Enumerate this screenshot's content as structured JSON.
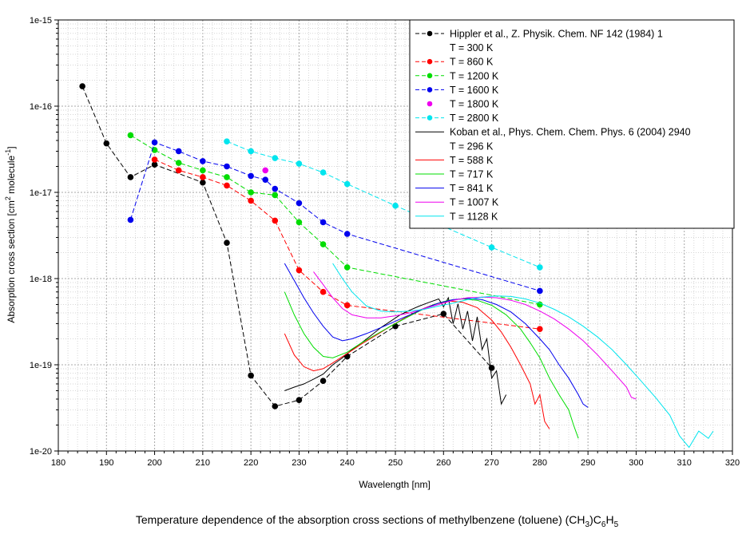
{
  "chart_data": {
    "type": "line",
    "title": "",
    "caption": "Temperature dependence of the absorption cross sections of methylbenzene (toluene) (CH",
    "caption_sub1": "3",
    "caption_mid": ")C",
    "caption_sub2": "6",
    "caption_mid2": "H",
    "caption_sub3": "5",
    "xlabel": "Wavelength [nm]",
    "ylabel": "Absorption cross section [cm",
    "ylabel_sup1": "2",
    "ylabel_mid": " molecule",
    "ylabel_sup2": "-1",
    "ylabel_end": "]",
    "xlim": [
      180,
      320
    ],
    "ylim_log10": [
      -20,
      -15
    ],
    "xticks": [
      180,
      190,
      200,
      210,
      220,
      230,
      240,
      250,
      260,
      270,
      280,
      290,
      300,
      310,
      320
    ],
    "yticks": [
      {
        "exp": -20,
        "label": "1e-20"
      },
      {
        "exp": -19,
        "label": "1e-19"
      },
      {
        "exp": -18,
        "label": "1e-18"
      },
      {
        "exp": -17,
        "label": "1e-17"
      },
      {
        "exp": -16,
        "label": "1e-16"
      },
      {
        "exp": -15,
        "label": "1e-15"
      }
    ],
    "grid": true,
    "legend_position": "top-right",
    "legend": [
      {
        "label": "Hippler et al., Z. Physik. Chem. NF 142 (1984) 1",
        "color": "#000000",
        "style": "dashed-marker"
      },
      {
        "label": "T = 300 K",
        "color": "#000000",
        "style": "none"
      },
      {
        "label": "T = 860 K",
        "color": "#ff0000",
        "style": "dashed-marker"
      },
      {
        "label": "T = 1200 K",
        "color": "#00dd00",
        "style": "dashed-marker"
      },
      {
        "label": "T = 1600 K",
        "color": "#0000ee",
        "style": "dashed-marker"
      },
      {
        "label": "T = 1800 K",
        "color": "#ee00ee",
        "style": "marker"
      },
      {
        "label": "T = 2800 K",
        "color": "#00e5ee",
        "style": "dashed-marker"
      },
      {
        "label": "Koban et al., Phys. Chem. Chem. Phys. 6 (2004) 2940",
        "color": "#000000",
        "style": "line"
      },
      {
        "label": "T =  296 K",
        "color": "#000000",
        "style": "none"
      },
      {
        "label": "T =  588 K",
        "color": "#ff0000",
        "style": "line"
      },
      {
        "label": "T =  717 K",
        "color": "#00dd00",
        "style": "line"
      },
      {
        "label": "T =  841 K",
        "color": "#0000ee",
        "style": "line"
      },
      {
        "label": "T = 1007 K",
        "color": "#ee00ee",
        "style": "line"
      },
      {
        "label": "T = 1128 K",
        "color": "#00e5ee",
        "style": "line"
      }
    ],
    "series": [
      {
        "name": "Hippler 300 K",
        "color": "#000000",
        "kind": "marker",
        "x": [
          185,
          190,
          195,
          200,
          210,
          215,
          220,
          225,
          230,
          235,
          240,
          250,
          260,
          270
        ],
        "y": [
          1.7e-16,
          3.7e-17,
          1.5e-17,
          2.1e-17,
          1.3e-17,
          2.6e-18,
          7.5e-20,
          3.3e-20,
          3.9e-20,
          6.5e-20,
          1.25e-19,
          2.8e-19,
          3.9e-19,
          9.2e-20
        ]
      },
      {
        "name": "Hippler 860 K",
        "color": "#ff0000",
        "kind": "marker",
        "x": [
          200,
          205,
          210,
          215,
          220,
          225,
          230,
          235,
          240,
          280
        ],
        "y": [
          2.4e-17,
          1.8e-17,
          1.5e-17,
          1.2e-17,
          8e-18,
          4.7e-18,
          1.25e-18,
          7e-19,
          4.9e-19,
          2.6e-19
        ]
      },
      {
        "name": "Hippler 1200 K",
        "color": "#00dd00",
        "kind": "marker",
        "x": [
          195,
          200,
          205,
          210,
          215,
          220,
          225,
          230,
          235,
          240,
          280
        ],
        "y": [
          4.6e-17,
          3.1e-17,
          2.2e-17,
          1.8e-17,
          1.5e-17,
          1e-17,
          9.3e-18,
          4.5e-18,
          2.5e-18,
          1.35e-18,
          5e-19
        ]
      },
      {
        "name": "Hippler 1600 K",
        "color": "#0000ee",
        "kind": "marker",
        "x": [
          195,
          200,
          205,
          210,
          215,
          220,
          223,
          225,
          230,
          235,
          240,
          280
        ],
        "y": [
          4.8e-18,
          3.8e-17,
          3e-17,
          2.3e-17,
          2e-17,
          1.55e-17,
          1.4e-17,
          1.1e-17,
          7.5e-18,
          4.5e-18,
          3.3e-18,
          7.2e-19
        ]
      },
      {
        "name": "Hippler 1800 K",
        "color": "#ee00ee",
        "kind": "marker-only",
        "x": [
          223
        ],
        "y": [
          1.8e-17
        ]
      },
      {
        "name": "Hippler 2800 K",
        "color": "#00e5ee",
        "kind": "marker",
        "x": [
          215,
          220,
          225,
          230,
          235,
          240,
          250,
          270,
          280
        ],
        "y": [
          3.9e-17,
          3e-17,
          2.5e-17,
          2.15e-17,
          1.7e-17,
          1.25e-17,
          7e-18,
          2.3e-18,
          1.35e-18
        ]
      },
      {
        "name": "Koban 296 K",
        "color": "#000000",
        "kind": "line",
        "x": [
          227,
          229,
          231,
          233,
          235,
          237,
          239,
          241,
          243,
          245,
          247,
          249,
          251,
          253,
          255,
          257,
          259,
          260,
          261,
          262,
          263,
          264,
          265,
          266,
          267,
          268,
          269,
          270,
          271,
          272,
          273
        ],
        "y": [
          5e-20,
          5.5e-20,
          6e-20,
          6.8e-20,
          7.8e-20,
          1e-19,
          1.2e-19,
          1.5e-19,
          1.8e-19,
          2.2e-19,
          2.7e-19,
          3.2e-19,
          3.8e-19,
          4.3e-19,
          4.8e-19,
          5.3e-19,
          5.8e-19,
          4.7e-19,
          6e-19,
          3e-19,
          5.1e-19,
          2.6e-19,
          4.2e-19,
          1.9e-19,
          3.6e-19,
          1.5e-19,
          2e-19,
          7e-20,
          8.5e-20,
          3.5e-20,
          4.5e-20
        ]
      },
      {
        "name": "Koban 588 K",
        "color": "#ff0000",
        "kind": "line",
        "x": [
          227,
          229,
          231,
          233,
          235,
          237,
          240,
          243,
          246,
          249,
          252,
          255,
          258,
          261,
          264,
          267,
          270,
          272,
          274,
          276,
          278,
          279,
          280,
          281,
          282
        ],
        "y": [
          2.3e-19,
          1.3e-19,
          9.5e-20,
          8.5e-20,
          9e-20,
          1.05e-19,
          1.35e-19,
          1.75e-19,
          2.2e-19,
          2.8e-19,
          3.5e-19,
          4.3e-19,
          5e-19,
          5.5e-19,
          5.3e-19,
          4.6e-19,
          3.3e-19,
          2.4e-19,
          1.6e-19,
          1e-19,
          6e-20,
          3.5e-20,
          4.5e-20,
          2.2e-20,
          1.8e-20
        ]
      },
      {
        "name": "Koban 717 K",
        "color": "#00dd00",
        "kind": "line",
        "x": [
          227,
          229,
          231,
          233,
          235,
          237,
          240,
          243,
          246,
          249,
          252,
          255,
          258,
          261,
          264,
          267,
          270,
          273,
          276,
          278,
          280,
          282,
          284,
          286,
          287,
          288
        ],
        "y": [
          7e-19,
          3.8e-19,
          2.3e-19,
          1.6e-19,
          1.25e-19,
          1.2e-19,
          1.4e-19,
          1.8e-19,
          2.25e-19,
          2.8e-19,
          3.45e-19,
          4.2e-19,
          5e-19,
          5.6e-19,
          5.8e-19,
          5.6e-19,
          4.9e-19,
          3.8e-19,
          2.6e-19,
          1.8e-19,
          1.2e-19,
          7e-20,
          4.5e-20,
          3e-20,
          2e-20,
          1.4e-20
        ]
      },
      {
        "name": "Koban 841 K",
        "color": "#0000ee",
        "kind": "line",
        "x": [
          227,
          229,
          231,
          233,
          235,
          237,
          239,
          241,
          244,
          247,
          250,
          253,
          256,
          259,
          262,
          265,
          268,
          271,
          274,
          277,
          280,
          282,
          284,
          286,
          288,
          289,
          290
        ],
        "y": [
          1.5e-18,
          9.5e-19,
          6e-19,
          4e-19,
          2.8e-19,
          2.1e-19,
          1.9e-19,
          2e-19,
          2.3e-19,
          2.7e-19,
          3.2e-19,
          3.8e-19,
          4.5e-19,
          5.2e-19,
          5.7e-19,
          5.9e-19,
          5.7e-19,
          5e-19,
          4.1e-19,
          3e-19,
          2e-19,
          1.5e-19,
          1e-19,
          7e-20,
          4.5e-20,
          3.5e-20,
          3.2e-20
        ]
      },
      {
        "name": "Koban 1007 K",
        "color": "#ee00ee",
        "kind": "line",
        "x": [
          233,
          235,
          237,
          239,
          241,
          244,
          247,
          250,
          253,
          256,
          259,
          262,
          265,
          268,
          271,
          274,
          277,
          280,
          283,
          286,
          289,
          292,
          295,
          298,
          299,
          300
        ],
        "y": [
          1.2e-18,
          8.5e-19,
          6e-19,
          4.5e-19,
          3.8e-19,
          3.5e-19,
          3.5e-19,
          3.7e-19,
          4e-19,
          4.5e-19,
          5e-19,
          5.6e-19,
          6e-19,
          6.1e-19,
          6e-19,
          5.6e-19,
          5e-19,
          4.2e-19,
          3.4e-19,
          2.6e-19,
          1.9e-19,
          1.3e-19,
          8.5e-20,
          5.5e-20,
          4.2e-20,
          4e-20
        ]
      },
      {
        "name": "Koban 1128 K",
        "color": "#00e5ee",
        "kind": "line",
        "x": [
          237,
          239,
          241,
          244,
          247,
          250,
          253,
          256,
          259,
          262,
          265,
          268,
          271,
          274,
          277,
          280,
          283,
          286,
          289,
          292,
          295,
          298,
          301,
          304,
          307,
          309,
          311,
          313,
          315,
          316
        ],
        "y": [
          1.5e-18,
          1e-18,
          7e-19,
          4.8e-19,
          4.2e-19,
          4.1e-19,
          4.2e-19,
          4.4e-19,
          4.8e-19,
          5.2e-19,
          5.7e-19,
          6.1e-19,
          6.3e-19,
          6.2e-19,
          5.8e-19,
          5.2e-19,
          4.4e-19,
          3.6e-19,
          2.8e-19,
          2.1e-19,
          1.5e-19,
          1e-19,
          6.5e-20,
          4.2e-20,
          2.6e-20,
          1.5e-20,
          1.1e-20,
          1.7e-20,
          1.4e-20,
          1.7e-20
        ]
      }
    ]
  }
}
